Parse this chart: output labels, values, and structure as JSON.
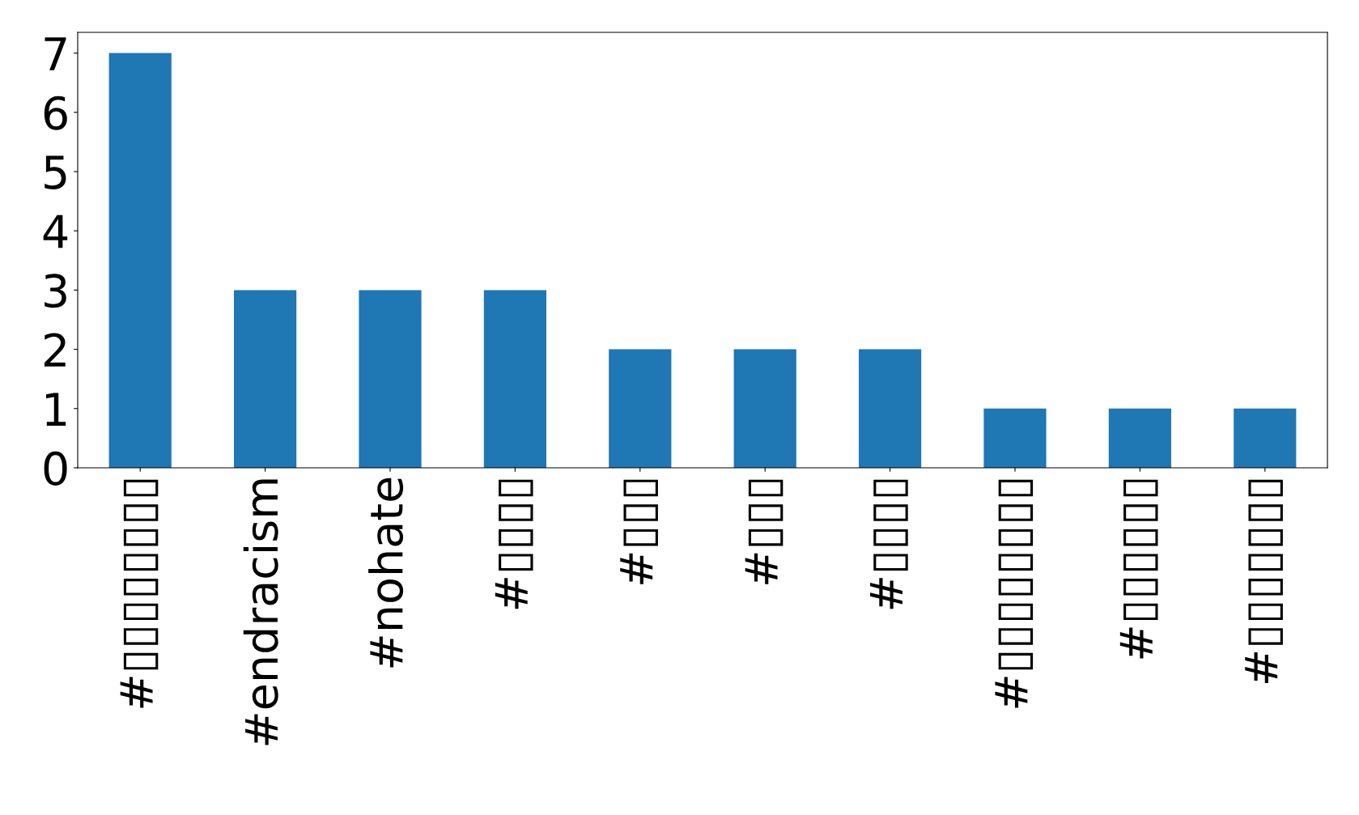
{
  "chart_data": {
    "type": "bar",
    "categories": [
      "#▯▯▯▯▯▯▯▯",
      "#endracism",
      "#nohate",
      "#▯▯▯▯",
      "#▯▯▯",
      "#▯▯▯",
      "#▯▯▯▯",
      "#▯▯▯▯▯▯▯▯",
      "#▯▯▯▯▯▯",
      "#▯▯▯▯▯▯▯"
    ],
    "values": [
      7,
      3,
      3,
      3,
      2,
      2,
      2,
      1,
      1,
      1
    ],
    "color": "#1f77b4",
    "ylim": [
      0,
      7.35
    ],
    "yticks": [
      0,
      1,
      2,
      3,
      4,
      5,
      6,
      7
    ],
    "grid": false,
    "legend": false
  }
}
